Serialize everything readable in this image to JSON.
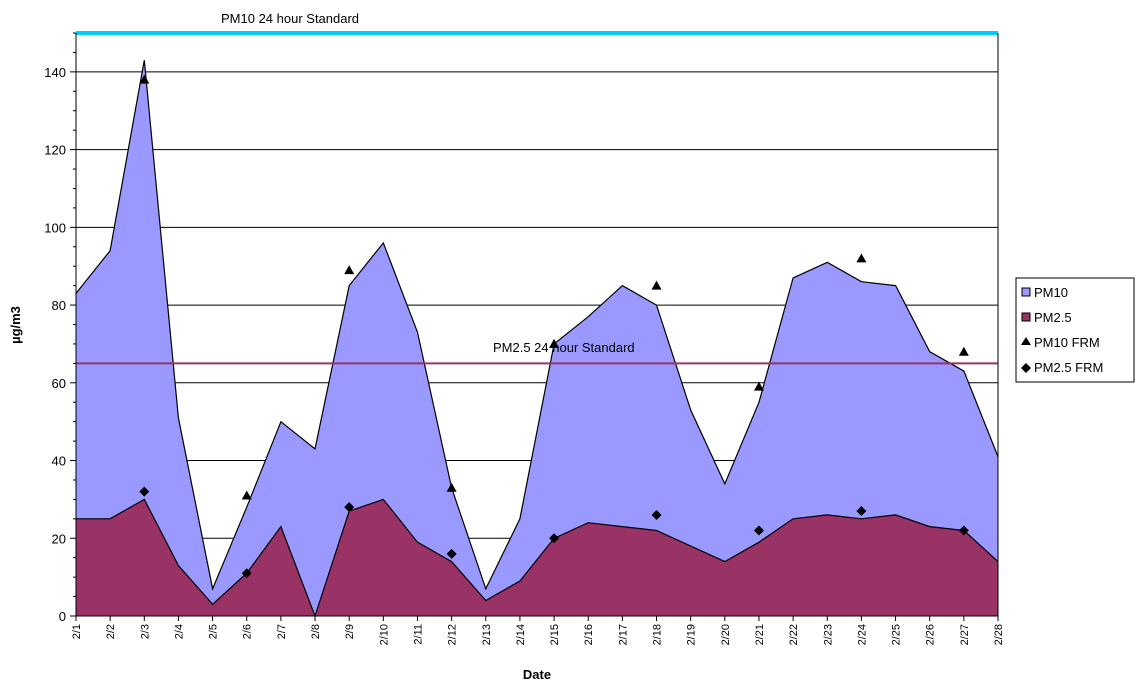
{
  "chart_data": {
    "type": "area",
    "xlabel": "Date",
    "ylabel": "µg/m3",
    "ylim": [
      0,
      150
    ],
    "yticks": [
      0,
      20,
      40,
      60,
      80,
      100,
      120,
      140
    ],
    "grid": true,
    "legend_position": "right",
    "categories": [
      "2/1",
      "2/2",
      "2/3",
      "2/4",
      "2/5",
      "2/6",
      "2/7",
      "2/8",
      "2/9",
      "2/10",
      "2/11",
      "2/12",
      "2/13",
      "2/14",
      "2/15",
      "2/16",
      "2/17",
      "2/18",
      "2/19",
      "2/20",
      "2/21",
      "2/22",
      "2/23",
      "2/24",
      "2/25",
      "2/26",
      "2/27",
      "2/28"
    ],
    "series": [
      {
        "name": "PM10",
        "type": "area",
        "color": "#9999ff",
        "values": [
          83,
          94,
          143,
          51,
          7,
          28,
          50,
          43,
          85,
          96,
          73,
          33,
          7,
          25,
          70,
          77,
          85,
          80,
          53,
          34,
          55,
          87,
          91,
          86,
          85,
          68,
          63,
          41
        ]
      },
      {
        "name": "PM2.5",
        "type": "area",
        "color": "#993366",
        "values": [
          25,
          25,
          30,
          13,
          3,
          11,
          23,
          0,
          27,
          30,
          19,
          14,
          4,
          9,
          20,
          24,
          23,
          22,
          18,
          14,
          19,
          25,
          26,
          25,
          26,
          23,
          22,
          14
        ]
      },
      {
        "name": "PM10 FRM",
        "type": "marker",
        "marker": "triangle",
        "color": "#000000",
        "points": [
          {
            "x": "2/3",
            "y": 138
          },
          {
            "x": "2/6",
            "y": 31
          },
          {
            "x": "2/9",
            "y": 89
          },
          {
            "x": "2/12",
            "y": 33
          },
          {
            "x": "2/15",
            "y": 70
          },
          {
            "x": "2/18",
            "y": 85
          },
          {
            "x": "2/21",
            "y": 59
          },
          {
            "x": "2/24",
            "y": 92
          },
          {
            "x": "2/27",
            "y": 68
          }
        ]
      },
      {
        "name": "PM2.5 FRM",
        "type": "marker",
        "marker": "diamond",
        "color": "#000000",
        "points": [
          {
            "x": "2/3",
            "y": 32
          },
          {
            "x": "2/6",
            "y": 11
          },
          {
            "x": "2/9",
            "y": 28
          },
          {
            "x": "2/12",
            "y": 16
          },
          {
            "x": "2/15",
            "y": 20
          },
          {
            "x": "2/18",
            "y": 26
          },
          {
            "x": "2/21",
            "y": 22
          },
          {
            "x": "2/24",
            "y": 27
          },
          {
            "x": "2/27",
            "y": 22
          }
        ]
      }
    ],
    "reference_lines": [
      {
        "label": "PM10 24 hour Standard",
        "value": 150,
        "color": "#00ccff"
      },
      {
        "label": "PM2.5 24 hour Standard",
        "value": 65,
        "color": "#993366"
      }
    ],
    "legend": [
      "PM10",
      "PM2.5",
      "PM10 FRM",
      "PM2.5 FRM"
    ]
  }
}
